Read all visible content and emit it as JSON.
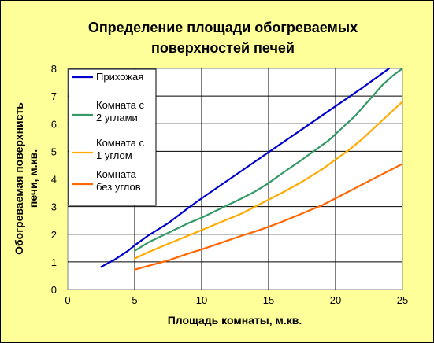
{
  "chart_data": {
    "type": "line",
    "title_lines": [
      "Определение площади обогреваемых",
      "поверхностей печей"
    ],
    "xlabel": "Площадь комнаты, м.кв.",
    "ylabel_lines": [
      "Обогреваемая поверхнисть",
      "печи, м.кв."
    ],
    "xlim": [
      0,
      25
    ],
    "ylim": [
      0,
      8
    ],
    "x_ticks": [
      0,
      5,
      10,
      15,
      20,
      25
    ],
    "y_ticks": [
      0,
      1,
      2,
      3,
      4,
      5,
      6,
      7,
      8
    ],
    "grid": true,
    "legend_position": "top-left",
    "series": [
      {
        "name_lines": [
          "Прихожая"
        ],
        "color": "#0000cc",
        "x": [
          2.5,
          3.5,
          4.5,
          5,
          6,
          7.5,
          9,
          10,
          11.5,
          13,
          14.5,
          16,
          17.5,
          19,
          20.5,
          22,
          23,
          24
        ],
        "y": [
          0.82,
          1.08,
          1.4,
          1.6,
          1.95,
          2.4,
          2.95,
          3.3,
          3.8,
          4.3,
          4.8,
          5.3,
          5.8,
          6.3,
          6.8,
          7.3,
          7.65,
          8.0
        ]
      },
      {
        "name_lines": [
          "Комната с",
          "2 углами"
        ],
        "color": "#339966",
        "x": [
          5,
          6,
          7.5,
          9,
          10,
          11.5,
          13,
          14,
          15,
          16,
          17.5,
          18.5,
          19.5,
          20.5,
          21.5,
          22.5,
          23.5,
          24.3,
          25
        ],
        "y": [
          1.4,
          1.7,
          2.05,
          2.4,
          2.6,
          2.95,
          3.3,
          3.55,
          3.85,
          4.2,
          4.7,
          5.05,
          5.4,
          5.85,
          6.3,
          6.85,
          7.4,
          7.75,
          8.0
        ]
      },
      {
        "name_lines": [
          "Комната с",
          "1 углом"
        ],
        "color": "#ffaa00",
        "x": [
          5,
          6,
          7.5,
          9,
          10,
          11.5,
          13,
          14,
          15,
          16,
          17.5,
          19,
          20,
          21,
          22,
          23,
          24,
          25
        ],
        "y": [
          1.12,
          1.35,
          1.65,
          1.95,
          2.15,
          2.45,
          2.75,
          3.0,
          3.25,
          3.5,
          3.9,
          4.35,
          4.7,
          5.05,
          5.45,
          5.9,
          6.35,
          6.8
        ]
      },
      {
        "name_lines": [
          "Комната",
          "без углов"
        ],
        "color": "#ff6600",
        "x": [
          5,
          6,
          7.5,
          9,
          10,
          11.5,
          13,
          14,
          15,
          16,
          17.5,
          19,
          20,
          21,
          22,
          23,
          24,
          25
        ],
        "y": [
          0.72,
          0.85,
          1.05,
          1.3,
          1.45,
          1.7,
          1.95,
          2.1,
          2.27,
          2.45,
          2.75,
          3.05,
          3.3,
          3.55,
          3.8,
          4.05,
          4.3,
          4.55
        ]
      }
    ]
  }
}
